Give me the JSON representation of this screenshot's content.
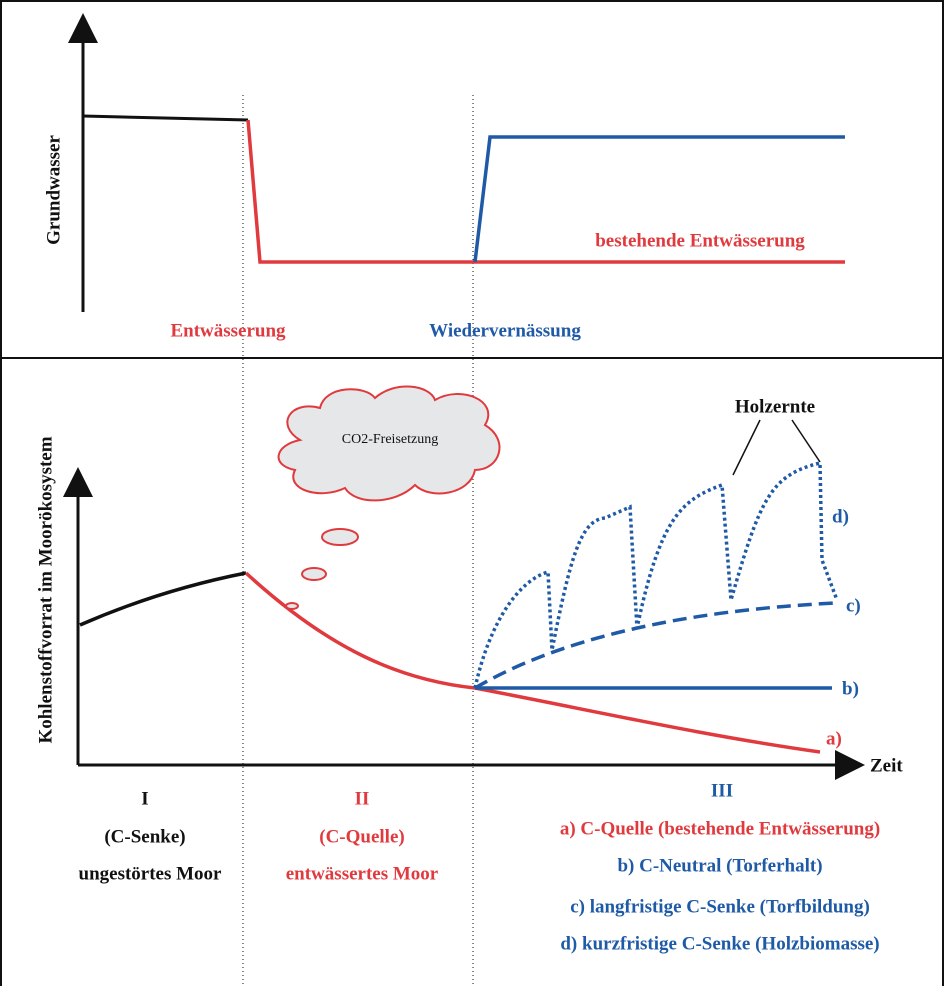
{
  "top_panel": {
    "y_label": "Grundwasser",
    "red_line_label": "bestehende Entwässerung",
    "phase_labels": [
      "Entwässerung",
      "Wiedervernässung"
    ]
  },
  "bottom_panel": {
    "y_label": "Kohlenstoffvorrat im Moorökosystem",
    "x_label": "Zeit",
    "cloud_label": "CO2-Freisetzung",
    "harvest_label": "Holzernte",
    "curve_labels": [
      "a)",
      "b)",
      "c)",
      "d)"
    ]
  },
  "phases": [
    {
      "number": "I",
      "role": "(C-Senke)",
      "description": "ungestörtes Moor"
    },
    {
      "number": "II",
      "role": "(C-Quelle)",
      "description": "entwässertes Moor"
    },
    {
      "number": "III",
      "scenarios": [
        "a) C-Quelle (bestehende Entwässerung)",
        "b) C-Neutral (Torferhalt)",
        "c) langfristige C-Senke (Torfbildung)",
        "d) kurzfristige C-Senke (Holzbiomasse)"
      ]
    }
  ]
}
